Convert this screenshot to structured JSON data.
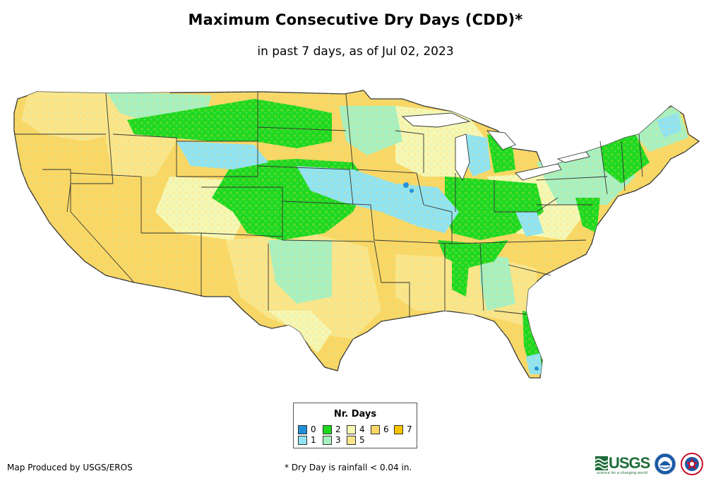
{
  "title": "Maximum Consecutive Dry Days (CDD)*",
  "subtitle": "in past 7 days, as of Jul 02, 2023",
  "legend": {
    "title": "Nr. Days",
    "items": [
      {
        "label": "0",
        "color": "#1e8fd8"
      },
      {
        "label": "1",
        "color": "#8fe3f2"
      },
      {
        "label": "2",
        "color": "#1ed81e"
      },
      {
        "label": "3",
        "color": "#a8f0c0"
      },
      {
        "label": "4",
        "color": "#f7f7b4"
      },
      {
        "label": "5",
        "color": "#fbe58a"
      },
      {
        "label": "6",
        "color": "#fad764"
      },
      {
        "label": "7",
        "color": "#f6c400"
      }
    ]
  },
  "footer": {
    "credit": "Map Produced by USGS/EROS",
    "note": "* Dry Day is rainfall < 0.04 in."
  },
  "logos": {
    "usgs": "USGS",
    "usgs_tagline": "science for a changing world"
  }
}
